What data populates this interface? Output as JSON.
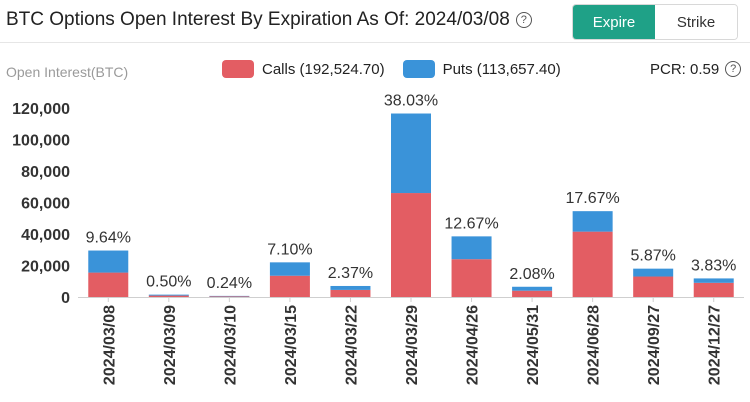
{
  "header": {
    "title": "BTC Options Open Interest By Expiration As Of: 2024/03/08",
    "toggle": {
      "expire_label": "Expire",
      "strike_label": "Strike"
    }
  },
  "icons": {
    "help": "help-circle-icon"
  },
  "colors": {
    "calls": "#e35d63",
    "puts": "#3a93d9",
    "accent": "#1fa187"
  },
  "legend": {
    "calls_label": "Calls (192,524.70)",
    "puts_label": "Puts (113,657.40)"
  },
  "pcr_label": "PCR: 0.59",
  "chart_data": {
    "type": "bar",
    "stacked": true,
    "ylabel": "Open Interest(BTC)",
    "ylim": [
      0,
      120000
    ],
    "yticks": [
      0,
      20000,
      40000,
      60000,
      80000,
      100000,
      120000
    ],
    "ytick_labels": [
      "0",
      "20,000",
      "40,000",
      "60,000",
      "80,000",
      "100,000",
      "120,000"
    ],
    "categories": [
      "2024/03/08",
      "2024/03/09",
      "2024/03/10",
      "2024/03/15",
      "2024/03/22",
      "2024/03/29",
      "2024/04/26",
      "2024/05/31",
      "2024/06/28",
      "2024/09/27",
      "2024/12/27"
    ],
    "series": [
      {
        "name": "Calls",
        "values": [
          15500,
          900,
          400,
          13500,
          4500,
          66000,
          24000,
          4000,
          41500,
          13000,
          9000
        ]
      },
      {
        "name": "Puts",
        "values": [
          14000,
          600,
          300,
          8500,
          2500,
          50500,
          14500,
          2500,
          13000,
          5000,
          2800
        ]
      }
    ],
    "data_labels": [
      "9.64%",
      "0.50%",
      "0.24%",
      "7.10%",
      "2.37%",
      "38.03%",
      "12.67%",
      "2.08%",
      "17.67%",
      "5.87%",
      "3.83%"
    ],
    "grid": false
  }
}
